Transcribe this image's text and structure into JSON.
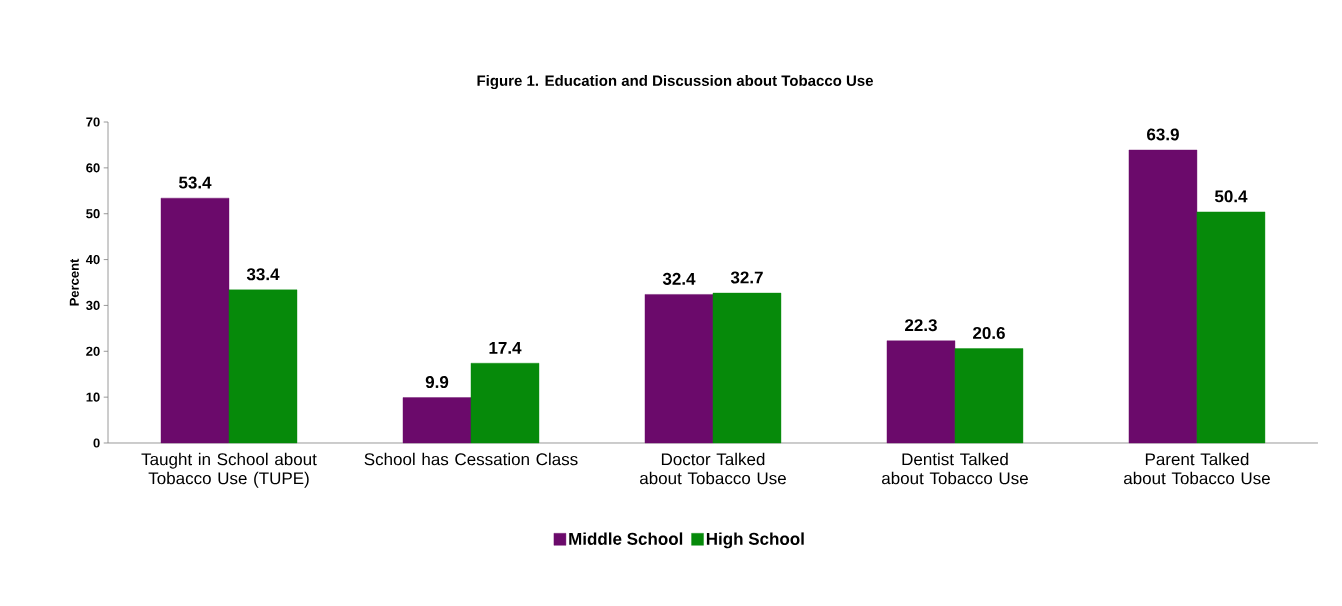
{
  "chart_data": {
    "type": "bar",
    "title": "Figure 1. Education and Discussion about Tobacco Use",
    "ylabel": "Percent",
    "categories": [
      "Taught in School about Tobacco Use (TUPE)",
      "School has Cessation Class",
      "Doctor Talked about Tobacco Use",
      "Dentist Talked about Tobacco Use",
      "Parent Talked about Tobacco Use"
    ],
    "series": [
      {
        "name": "Middle School",
        "color": "#6b0a6b",
        "values": [
          53.4,
          9.9,
          32.4,
          22.3,
          63.9
        ]
      },
      {
        "name": "High School",
        "color": "#068a0a",
        "values": [
          33.4,
          17.4,
          32.7,
          20.6,
          50.4
        ]
      }
    ],
    "ylim": [
      0,
      70
    ],
    "yticks": [
      0,
      10,
      20,
      30,
      40,
      50,
      60,
      70
    ],
    "grid": false,
    "legend": "bottom",
    "data_labels": true
  }
}
